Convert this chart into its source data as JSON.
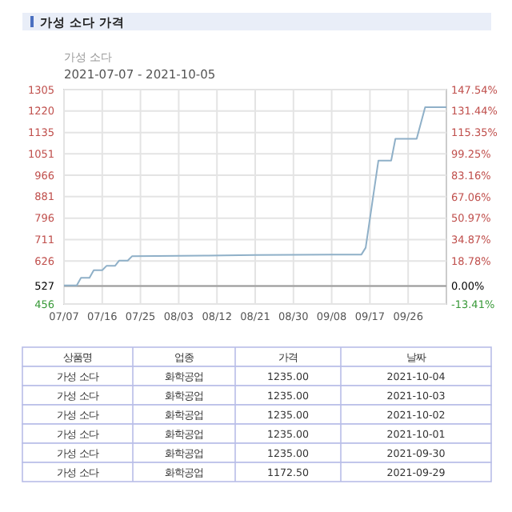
{
  "chart_data": {
    "type": "line",
    "title": "가성 소다 가격",
    "subtitle": "가성 소다",
    "annotations": [
      "2021-07-07 - 2021-10-05",
      "상품명",
      "업종",
      "가격",
      "날짜",
      "가성 소다",
      "화학공업",
      "1235.00",
      "2021-10-04",
      "가성 소다",
      "화학공업",
      "1235.00",
      "2021-10-03",
      "가성 소다",
      "화학공업",
      "1235.00",
      "2021-10-02",
      "가성 소다",
      "화학공업",
      "1235.00",
      "2021-10-01",
      "가성 소다",
      "화학공업",
      "1235.00",
      "2021-09-30",
      "가성 소다",
      "화학공업",
      "1172.50",
      "2021-09-29"
    ],
    "x": [
      "2021-07-07",
      "2021-07-10",
      "2021-07-11",
      "2021-07-13",
      "2021-07-14",
      "2021-07-16",
      "2021-07-17",
      "2021-07-19",
      "2021-07-20",
      "2021-07-22",
      "2021-07-23",
      "2021-08-10",
      "2021-08-21",
      "2021-09-08",
      "2021-09-15",
      "2021-09-16",
      "2021-09-19",
      "2021-09-22",
      "2021-09-23",
      "2021-09-28",
      "2021-09-29",
      "2021-09-30",
      "2021-10-01",
      "2021-10-02",
      "2021-10-03",
      "2021-10-04",
      "2021-10-05"
    ],
    "series": [
      {
        "color": "#8fb0c8",
        "values": [
          530,
          530,
          560,
          560,
          590,
          590,
          607,
          607,
          628,
          628,
          645,
          648,
          650,
          652,
          652,
          679,
          1024,
          1024,
          1110,
          1110,
          1172.5,
          1235,
          1235,
          1235,
          1235,
          1235,
          1235
        ]
      }
    ],
    "xlim": [
      "2021-07-07",
      "2021-10-05"
    ],
    "xticks": [
      {
        "value": "2021-07-07",
        "label": "07/07"
      },
      {
        "value": "2021-07-16",
        "label": "07/16"
      },
      {
        "value": "2021-07-25",
        "label": "07/25"
      },
      {
        "value": "2021-08-03",
        "label": "08/03"
      },
      {
        "value": "2021-08-12",
        "label": "08/12"
      },
      {
        "value": "2021-08-21",
        "label": "08/21"
      },
      {
        "value": "2021-08-30",
        "label": "08/30"
      },
      {
        "value": "2021-09-08",
        "label": "09/08"
      },
      {
        "value": "2021-09-17",
        "label": "09/17"
      },
      {
        "value": "2021-09-26",
        "label": "09/26"
      }
    ],
    "ylim": [
      456,
      1305
    ],
    "yticks": [
      456,
      527,
      626,
      711,
      796,
      881,
      966,
      1051,
      1135,
      1220,
      1305
    ],
    "y2lim": [
      -13.41,
      147.54
    ],
    "y2ticks": [
      {
        "value": -13.41,
        "label": "-13.41%"
      },
      {
        "value": 0,
        "label": "0.00%"
      },
      {
        "value": 18.78,
        "label": "18.78%"
      },
      {
        "value": 34.87,
        "label": "34.87%"
      },
      {
        "value": 50.97,
        "label": "50.97%"
      },
      {
        "value": 67.06,
        "label": "67.06%"
      },
      {
        "value": 83.16,
        "label": "83.16%"
      },
      {
        "value": 99.25,
        "label": "99.25%"
      },
      {
        "value": 115.35,
        "label": "115.35%"
      },
      {
        "value": 131.44,
        "label": "131.44%"
      },
      {
        "value": 147.54,
        "label": "147.54%"
      }
    ],
    "ref_lines": [
      {
        "axis": "y",
        "value": 527,
        "color": "#999999"
      }
    ],
    "grid": true,
    "marker": "none",
    "line_style": "solid"
  }
}
